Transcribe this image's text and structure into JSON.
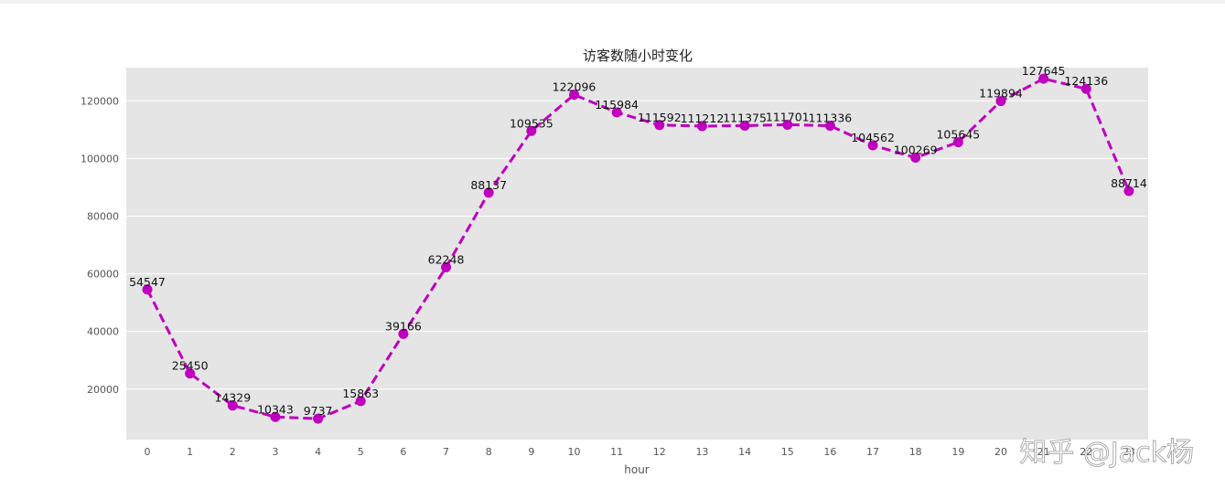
{
  "chart_data": {
    "type": "line",
    "title": "访客数随小时变化",
    "xlabel": "hour",
    "ylabel": "",
    "categories": [
      "0",
      "1",
      "2",
      "3",
      "4",
      "5",
      "6",
      "7",
      "8",
      "9",
      "10",
      "11",
      "12",
      "13",
      "14",
      "15",
      "16",
      "17",
      "18",
      "19",
      "20",
      "21",
      "22",
      "23"
    ],
    "series": [
      {
        "values": [
          54547,
          25450,
          14329,
          10343,
          9737,
          15863,
          39166,
          62248,
          88137,
          109535,
          122096,
          115984,
          111592,
          111212,
          111375,
          111701,
          111336,
          104562,
          100269,
          105645,
          119894,
          127645,
          124136,
          88714
        ]
      }
    ],
    "ylim": [
      2500,
      131500
    ],
    "yticks": [
      20000,
      40000,
      60000,
      80000,
      100000,
      120000
    ],
    "grid": true,
    "line_color": "#bf00bf",
    "background_color": "#e5e5e5"
  },
  "watermark": "知乎 @Jack杨"
}
